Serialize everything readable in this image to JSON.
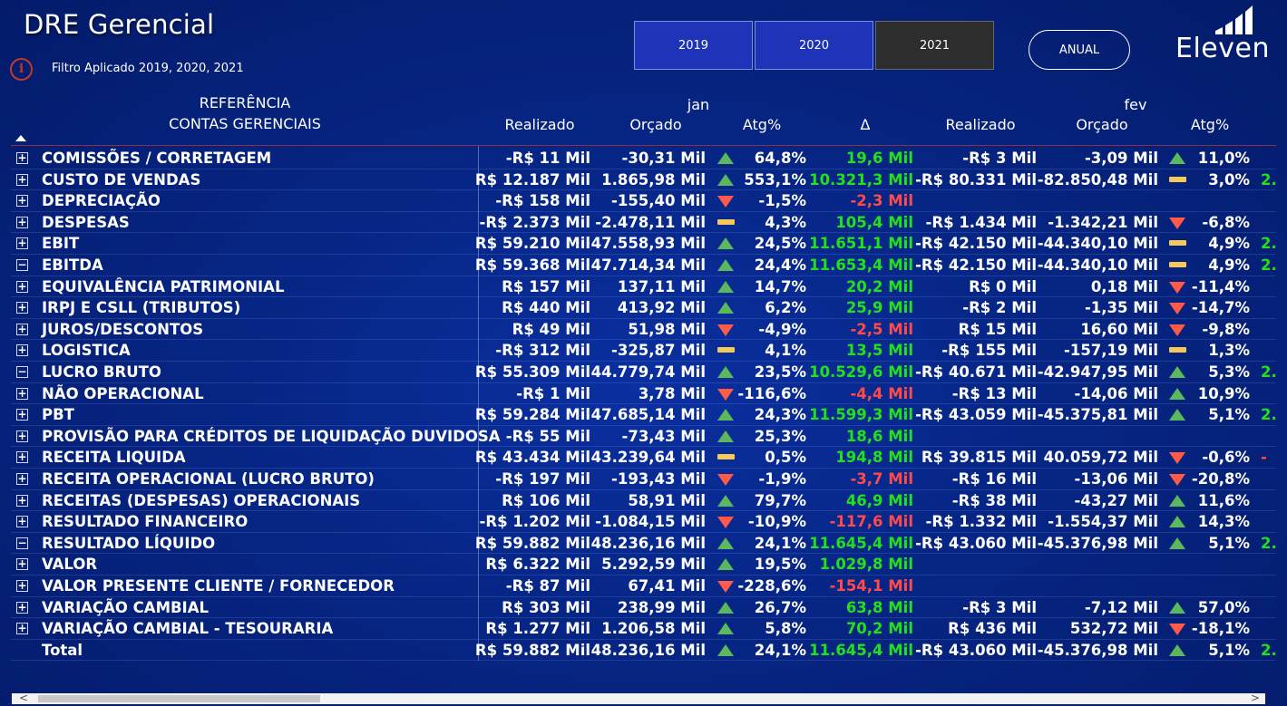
{
  "header": {
    "title": "DRE Gerencial",
    "info_icon": "i",
    "filter_text": "Filtro Aplicado 2019, 2020, 2021",
    "years": [
      "2019",
      "2020",
      "2021"
    ],
    "active_year": "2021",
    "anual_label": "ANUAL",
    "logo_text": "Eleven"
  },
  "table": {
    "ref_header_1": "REFERÊNCIA",
    "ref_header_2": "CONTAS GERENCIAIS",
    "months": [
      "jan",
      "fev"
    ],
    "col_headers": {
      "realizado": "Realizado",
      "orcado": "Orçado",
      "atg": "Atg%",
      "delta": "Δ"
    },
    "rows": [
      {
        "expand": "+",
        "name": "COMISSÕES / CORRETAGEM",
        "j_real": "-R$ 11 Mil",
        "j_orc": "-30,31 Mil",
        "j_ind": "up",
        "j_atg": "64,8%",
        "j_delta": "19,6 Mil",
        "j_dsign": "pos",
        "f_real": "-R$ 3 Mil",
        "f_orc": "-3,09 Mil",
        "f_ind": "up",
        "f_atg": "11,0%",
        "f_trunc": ""
      },
      {
        "expand": "+",
        "name": "CUSTO DE VENDAS",
        "j_real": "R$ 12.187 Mil",
        "j_orc": "1.865,98 Mil",
        "j_ind": "up",
        "j_atg": "553,1%",
        "j_delta": "10.321,3 Mil",
        "j_dsign": "pos",
        "f_real": "-R$ 80.331 Mil",
        "f_orc": "-82.850,48 Mil",
        "f_ind": "eq",
        "f_atg": "3,0%",
        "f_trunc": "2."
      },
      {
        "expand": "+",
        "name": "DEPRECIAÇÃO",
        "j_real": "-R$ 158 Mil",
        "j_orc": "-155,40 Mil",
        "j_ind": "down",
        "j_atg": "-1,5%",
        "j_delta": "-2,3 Mil",
        "j_dsign": "neg",
        "f_real": "",
        "f_orc": "",
        "f_ind": "",
        "f_atg": "",
        "f_trunc": ""
      },
      {
        "expand": "+",
        "name": "DESPESAS",
        "j_real": "-R$ 2.373 Mil",
        "j_orc": "-2.478,11 Mil",
        "j_ind": "eq",
        "j_atg": "4,3%",
        "j_delta": "105,4 Mil",
        "j_dsign": "pos",
        "f_real": "-R$ 1.434 Mil",
        "f_orc": "-1.342,21 Mil",
        "f_ind": "down",
        "f_atg": "-6,8%",
        "f_trunc": ""
      },
      {
        "expand": "+",
        "name": "EBIT",
        "j_real": "R$ 59.210 Mil",
        "j_orc": "47.558,93 Mil",
        "j_ind": "up",
        "j_atg": "24,5%",
        "j_delta": "11.651,1 Mil",
        "j_dsign": "pos",
        "f_real": "-R$ 42.150 Mil",
        "f_orc": "-44.340,10 Mil",
        "f_ind": "eq",
        "f_atg": "4,9%",
        "f_trunc": "2."
      },
      {
        "expand": "−",
        "name": "EBITDA",
        "j_real": "R$ 59.368 Mil",
        "j_orc": "47.714,34 Mil",
        "j_ind": "up",
        "j_atg": "24,4%",
        "j_delta": "11.653,4 Mil",
        "j_dsign": "pos",
        "f_real": "-R$ 42.150 Mil",
        "f_orc": "-44.340,10 Mil",
        "f_ind": "eq",
        "f_atg": "4,9%",
        "f_trunc": "2."
      },
      {
        "expand": "+",
        "name": "EQUIVALÊNCIA PATRIMONIAL",
        "j_real": "R$ 157 Mil",
        "j_orc": "137,11 Mil",
        "j_ind": "up",
        "j_atg": "14,7%",
        "j_delta": "20,2 Mil",
        "j_dsign": "pos",
        "f_real": "R$ 0 Mil",
        "f_orc": "0,18 Mil",
        "f_ind": "down",
        "f_atg": "-11,4%",
        "f_trunc": ""
      },
      {
        "expand": "+",
        "name": "IRPJ E CSLL (TRIBUTOS)",
        "j_real": "R$ 440 Mil",
        "j_orc": "413,92 Mil",
        "j_ind": "up",
        "j_atg": "6,2%",
        "j_delta": "25,9 Mil",
        "j_dsign": "pos",
        "f_real": "-R$ 2 Mil",
        "f_orc": "-1,35 Mil",
        "f_ind": "down",
        "f_atg": "-14,7%",
        "f_trunc": ""
      },
      {
        "expand": "+",
        "name": "JUROS/DESCONTOS",
        "j_real": "R$ 49 Mil",
        "j_orc": "51,98 Mil",
        "j_ind": "down",
        "j_atg": "-4,9%",
        "j_delta": "-2,5 Mil",
        "j_dsign": "neg",
        "f_real": "R$ 15 Mil",
        "f_orc": "16,60 Mil",
        "f_ind": "down",
        "f_atg": "-9,8%",
        "f_trunc": ""
      },
      {
        "expand": "+",
        "name": "LOGISTICA",
        "j_real": "-R$ 312 Mil",
        "j_orc": "-325,87 Mil",
        "j_ind": "eq",
        "j_atg": "4,1%",
        "j_delta": "13,5 Mil",
        "j_dsign": "pos",
        "f_real": "-R$ 155 Mil",
        "f_orc": "-157,19 Mil",
        "f_ind": "eq",
        "f_atg": "1,3%",
        "f_trunc": ""
      },
      {
        "expand": "−",
        "name": "LUCRO BRUTO",
        "j_real": "R$ 55.309 Mil",
        "j_orc": "44.779,74 Mil",
        "j_ind": "up",
        "j_atg": "23,5%",
        "j_delta": "10.529,6 Mil",
        "j_dsign": "pos",
        "f_real": "-R$ 40.671 Mil",
        "f_orc": "-42.947,95 Mil",
        "f_ind": "up",
        "f_atg": "5,3%",
        "f_trunc": "2."
      },
      {
        "expand": "+",
        "name": "NÃO OPERACIONAL",
        "j_real": "-R$ 1 Mil",
        "j_orc": "3,78 Mil",
        "j_ind": "down",
        "j_atg": "-116,6%",
        "j_delta": "-4,4 Mil",
        "j_dsign": "neg",
        "f_real": "-R$ 13 Mil",
        "f_orc": "-14,06 Mil",
        "f_ind": "up",
        "f_atg": "10,9%",
        "f_trunc": ""
      },
      {
        "expand": "+",
        "name": "PBT",
        "j_real": "R$ 59.284 Mil",
        "j_orc": "47.685,14 Mil",
        "j_ind": "up",
        "j_atg": "24,3%",
        "j_delta": "11.599,3 Mil",
        "j_dsign": "pos",
        "f_real": "-R$ 43.059 Mil",
        "f_orc": "-45.375,81 Mil",
        "f_ind": "up",
        "f_atg": "5,1%",
        "f_trunc": "2."
      },
      {
        "expand": "+",
        "name": "PROVISÃO PARA CRÉDITOS DE LIQUIDAÇÃO DUVIDOSA",
        "j_real": "-R$ 55 Mil",
        "j_orc": "-73,43 Mil",
        "j_ind": "up",
        "j_atg": "25,3%",
        "j_delta": "18,6 Mil",
        "j_dsign": "pos",
        "f_real": "",
        "f_orc": "",
        "f_ind": "",
        "f_atg": "",
        "f_trunc": ""
      },
      {
        "expand": "+",
        "name": "RECEITA LIQUIDA",
        "j_real": "R$ 43.434 Mil",
        "j_orc": "43.239,64 Mil",
        "j_ind": "eq",
        "j_atg": "0,5%",
        "j_delta": "194,8 Mil",
        "j_dsign": "pos",
        "f_real": "R$ 39.815 Mil",
        "f_orc": "40.059,72 Mil",
        "f_ind": "down",
        "f_atg": "-0,6%",
        "f_trunc": "-"
      },
      {
        "expand": "+",
        "name": "RECEITA OPERACIONAL (LUCRO BRUTO)",
        "j_real": "-R$ 197 Mil",
        "j_orc": "-193,43 Mil",
        "j_ind": "down",
        "j_atg": "-1,9%",
        "j_delta": "-3,7 Mil",
        "j_dsign": "neg",
        "f_real": "-R$ 16 Mil",
        "f_orc": "-13,06 Mil",
        "f_ind": "down",
        "f_atg": "-20,8%",
        "f_trunc": ""
      },
      {
        "expand": "+",
        "name": "RECEITAS (DESPESAS) OPERACIONAIS",
        "j_real": "R$ 106 Mil",
        "j_orc": "58,91 Mil",
        "j_ind": "up",
        "j_atg": "79,7%",
        "j_delta": "46,9 Mil",
        "j_dsign": "pos",
        "f_real": "-R$ 38 Mil",
        "f_orc": "-43,27 Mil",
        "f_ind": "up",
        "f_atg": "11,6%",
        "f_trunc": ""
      },
      {
        "expand": "+",
        "name": "RESULTADO FINANCEIRO",
        "j_real": "-R$ 1.202 Mil",
        "j_orc": "-1.084,15 Mil",
        "j_ind": "down",
        "j_atg": "-10,9%",
        "j_delta": "-117,6 Mil",
        "j_dsign": "neg",
        "f_real": "-R$ 1.332 Mil",
        "f_orc": "-1.554,37 Mil",
        "f_ind": "up",
        "f_atg": "14,3%",
        "f_trunc": ""
      },
      {
        "expand": "−",
        "name": "RESULTADO LÍQUIDO",
        "j_real": "R$ 59.882 Mil",
        "j_orc": "48.236,16 Mil",
        "j_ind": "up",
        "j_atg": "24,1%",
        "j_delta": "11.645,4 Mil",
        "j_dsign": "pos",
        "f_real": "-R$ 43.060 Mil",
        "f_orc": "-45.376,98 Mil",
        "f_ind": "up",
        "f_atg": "5,1%",
        "f_trunc": "2."
      },
      {
        "expand": "+",
        "name": "VALOR",
        "j_real": "R$ 6.322 Mil",
        "j_orc": "5.292,59 Mil",
        "j_ind": "up",
        "j_atg": "19,5%",
        "j_delta": "1.029,8 Mil",
        "j_dsign": "pos",
        "f_real": "",
        "f_orc": "",
        "f_ind": "",
        "f_atg": "",
        "f_trunc": ""
      },
      {
        "expand": "+",
        "name": "VALOR PRESENTE CLIENTE / FORNECEDOR",
        "j_real": "-R$ 87 Mil",
        "j_orc": "67,41 Mil",
        "j_ind": "down",
        "j_atg": "-228,6%",
        "j_delta": "-154,1 Mil",
        "j_dsign": "neg",
        "f_real": "",
        "f_orc": "",
        "f_ind": "",
        "f_atg": "",
        "f_trunc": ""
      },
      {
        "expand": "+",
        "name": "VARIAÇÃO CAMBIAL",
        "j_real": "R$ 303 Mil",
        "j_orc": "238,99 Mil",
        "j_ind": "up",
        "j_atg": "26,7%",
        "j_delta": "63,8 Mil",
        "j_dsign": "pos",
        "f_real": "-R$ 3 Mil",
        "f_orc": "-7,12 Mil",
        "f_ind": "up",
        "f_atg": "57,0%",
        "f_trunc": ""
      },
      {
        "expand": "+",
        "name": "VARIAÇÃO CAMBIAL - TESOURARIA",
        "j_real": "R$ 1.277 Mil",
        "j_orc": "1.206,58 Mil",
        "j_ind": "up",
        "j_atg": "5,8%",
        "j_delta": "70,2 Mil",
        "j_dsign": "pos",
        "f_real": "R$ 436 Mil",
        "f_orc": "532,72 Mil",
        "f_ind": "down",
        "f_atg": "-18,1%",
        "f_trunc": ""
      },
      {
        "expand": "",
        "name": "Total",
        "j_real": "R$ 59.882 Mil",
        "j_orc": "48.236,16 Mil",
        "j_ind": "up",
        "j_atg": "24,1%",
        "j_delta": "11.645,4 Mil",
        "j_dsign": "pos",
        "f_real": "-R$ 43.060 Mil",
        "f_orc": "-45.376,98 Mil",
        "f_ind": "up",
        "f_atg": "5,1%",
        "f_trunc": "2."
      }
    ]
  },
  "colors": {
    "positive": "#22e11c",
    "negative": "#ff4a4a",
    "up_indicator": "#5cb85c",
    "down_indicator": "#ff5a4a",
    "neutral_indicator": "#f6c85a"
  }
}
